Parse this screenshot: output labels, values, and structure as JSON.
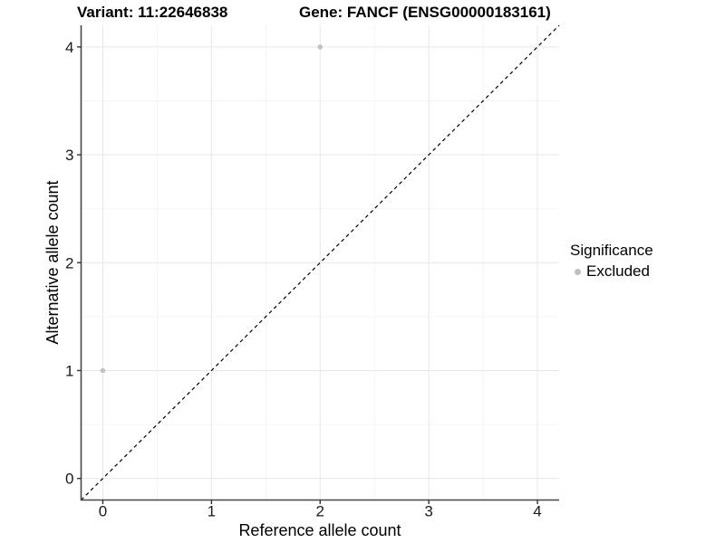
{
  "header": {
    "title_left": "Variant: 11:22646838",
    "title_right": "Gene: FANCF (ENSG00000183161)"
  },
  "chart_data": {
    "type": "scatter",
    "title": "Variant: 11:22646838 / Gene: FANCF (ENSG00000183161)",
    "xlabel": "Reference allele count",
    "ylabel": "Alternative allele count",
    "xlim": [
      -0.2,
      4.2
    ],
    "ylim": [
      -0.2,
      4.2
    ],
    "xticks": [
      0,
      1,
      2,
      3,
      4
    ],
    "yticks": [
      0,
      1,
      2,
      3,
      4
    ],
    "xminor": [
      0.5,
      1.5,
      2.5,
      3.5
    ],
    "yminor": [
      0.5,
      1.5,
      2.5,
      3.5
    ],
    "grid": "major and minor, light gray",
    "identity_line": {
      "style": "dashed",
      "color": "#000000",
      "from": [
        -0.2,
        -0.2
      ],
      "to": [
        4.2,
        4.2
      ]
    },
    "series": [
      {
        "name": "Excluded",
        "color": "#bebebe",
        "points": [
          {
            "x": 0,
            "y": 1
          },
          {
            "x": 2,
            "y": 4
          }
        ]
      }
    ],
    "legend": {
      "title": "Significance",
      "position": "right",
      "entries": [
        {
          "label": "Excluded",
          "color": "#bebebe"
        }
      ]
    }
  },
  "colors": {
    "background": "#ffffff",
    "point": "#bebebe",
    "axis_line": "#474747",
    "tick_mark": "#333333",
    "tick_label": "#1a1a1a",
    "grid_major": "#e7e7e7",
    "grid_minor": "#f4f4f4",
    "identity_line": "#000000",
    "text": "#000000"
  }
}
